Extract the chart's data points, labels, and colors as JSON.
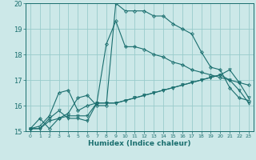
{
  "xlabel": "Humidex (Indice chaleur)",
  "xlim": [
    -0.5,
    23.5
  ],
  "ylim": [
    15,
    20
  ],
  "yticks": [
    15,
    16,
    17,
    18,
    19,
    20
  ],
  "xticks": [
    0,
    1,
    2,
    3,
    4,
    5,
    6,
    7,
    8,
    9,
    10,
    11,
    12,
    13,
    14,
    15,
    16,
    17,
    18,
    19,
    20,
    21,
    22,
    23
  ],
  "bg_color": "#cce8e8",
  "grid_color": "#99cccc",
  "line_color": "#1a6e6e",
  "series": [
    [
      15.1,
      15.5,
      15.1,
      15.5,
      15.7,
      16.3,
      16.4,
      16.0,
      16.0,
      20.0,
      19.7,
      19.7,
      19.7,
      19.5,
      19.5,
      19.2,
      19.0,
      18.8,
      18.1,
      17.5,
      17.4,
      16.7,
      16.3,
      16.2
    ],
    [
      15.1,
      15.2,
      15.6,
      16.5,
      16.6,
      15.8,
      16.0,
      16.1,
      18.4,
      19.3,
      18.3,
      18.3,
      18.2,
      18.0,
      17.9,
      17.7,
      17.6,
      17.4,
      17.3,
      17.2,
      17.1,
      17.0,
      16.9,
      16.8
    ],
    [
      15.1,
      15.1,
      15.5,
      15.8,
      15.5,
      15.5,
      15.4,
      16.1,
      16.1,
      16.1,
      16.2,
      16.3,
      16.4,
      16.5,
      16.6,
      16.7,
      16.8,
      16.9,
      17.0,
      17.1,
      17.2,
      17.4,
      16.9,
      16.3
    ],
    [
      15.1,
      15.1,
      15.4,
      15.5,
      15.6,
      15.6,
      15.6,
      16.1,
      16.1,
      16.1,
      16.2,
      16.3,
      16.4,
      16.5,
      16.6,
      16.7,
      16.8,
      16.9,
      17.0,
      17.1,
      17.2,
      17.0,
      16.6,
      16.1
    ]
  ],
  "markers": [
    "D",
    "D",
    "v",
    "v"
  ],
  "marker_sizes": [
    2.0,
    2.0,
    2.5,
    2.5
  ],
  "linewidths": [
    0.8,
    0.8,
    0.8,
    0.8
  ]
}
